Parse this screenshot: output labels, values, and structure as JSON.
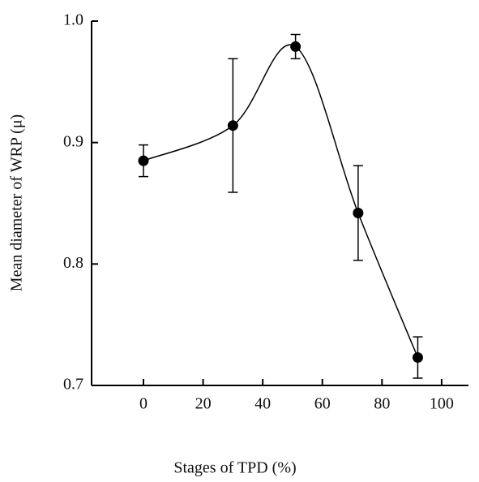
{
  "chart_data": {
    "type": "errorline",
    "xlabel": "Stages of TPD (%)",
    "ylabel": "Mean diameter of WRP (μ)",
    "x": [
      0,
      30,
      51,
      72,
      92
    ],
    "values": [
      0.885,
      0.914,
      0.979,
      0.842,
      0.723
    ],
    "errors": [
      0.013,
      0.055,
      0.01,
      0.039,
      0.017
    ],
    "color": "#000000",
    "xlim": [
      -17.4,
      109
    ],
    "xticks": [
      0,
      20,
      40,
      60,
      80,
      100
    ],
    "ylim": [
      0.7,
      1.0
    ],
    "yticks": [
      {
        "value": 0.7,
        "label": "0.7"
      },
      {
        "value": 0.8,
        "label": "0.8"
      },
      {
        "value": 0.9,
        "label": "0.9"
      },
      {
        "value": 1.0,
        "label": "1.0"
      }
    ],
    "grid": false
  }
}
